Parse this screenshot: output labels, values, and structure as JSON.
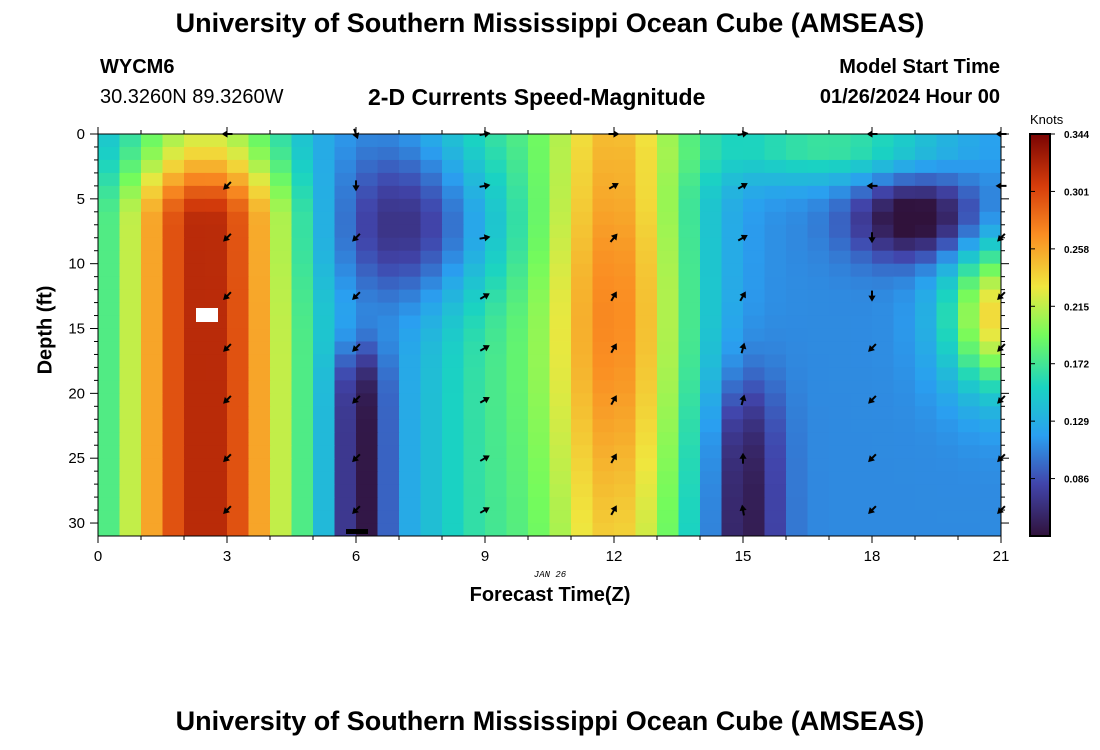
{
  "header": {
    "title": "University of Southern Mississippi Ocean Cube (AMSEAS)",
    "station": "WYCM6",
    "coords": "30.3260N  89.3260W",
    "subtitle": "2-D Currents Speed-Magnitude",
    "model_start_label": "Model Start Time",
    "model_start_value": "01/26/2024 Hour 00"
  },
  "footer": {
    "title": "University of Southern Mississippi Ocean Cube (AMSEAS)"
  },
  "chart_data": {
    "type": "heatmap",
    "xlabel": "Forecast Time(Z)",
    "ylabel": "Depth (ft)",
    "date_label": "JAN 26",
    "xlim": [
      0,
      21
    ],
    "ylim": [
      0,
      31
    ],
    "x_ticks": [
      0,
      3,
      6,
      9,
      12,
      15,
      18,
      21
    ],
    "y_ticks": [
      0,
      5,
      10,
      15,
      20,
      25,
      30
    ],
    "colorbar": {
      "units": "Knots",
      "min": 0.043,
      "max": 0.344,
      "ticks": [
        "0.344",
        "0.301",
        "0.258",
        "0.215",
        "0.172",
        "0.129",
        "0.086"
      ],
      "tick_values": [
        0.344,
        0.301,
        0.258,
        0.215,
        0.172,
        0.129,
        0.086
      ]
    },
    "speed_regions": [
      {
        "x": [
          0,
          5
        ],
        "y": [
          0,
          31
        ],
        "peak": 0.32,
        "note": "strong core near 3Z, 8-30 ft"
      },
      {
        "x": [
          5.5,
          6.5
        ],
        "y": [
          15,
          31
        ],
        "peak": 0.05,
        "note": "weak jet near 6Z"
      },
      {
        "x": [
          10.5,
          13.5
        ],
        "y": [
          0,
          31
        ],
        "peak": 0.29,
        "note": "strong core near 12Z"
      },
      {
        "x": [
          14.5,
          15.5
        ],
        "y": [
          20,
          31
        ],
        "peak": 0.05,
        "note": "weak jet near 15Z"
      },
      {
        "x": [
          18,
          20.5
        ],
        "y": [
          4,
          10
        ],
        "peak": 0.05,
        "note": "weak pocket near 19Z"
      },
      {
        "x": [
          20,
          21
        ],
        "y": [
          10,
          20
        ],
        "peak": 0.25,
        "note": "strong pocket near 21Z"
      }
    ],
    "vectors": {
      "depths": [
        0,
        4,
        8,
        12.5,
        16.5,
        20.5,
        25,
        29
      ],
      "columns": [
        {
          "time": 3,
          "directions_deg": [
            270,
            225,
            225,
            225,
            225,
            225,
            225,
            225
          ]
        },
        {
          "time": 6,
          "directions_deg": [
            160,
            180,
            225,
            225,
            225,
            225,
            225,
            225
          ]
        },
        {
          "time": 9,
          "directions_deg": [
            80,
            80,
            80,
            60,
            60,
            60,
            60,
            60
          ]
        },
        {
          "time": 12,
          "directions_deg": [
            90,
            60,
            40,
            30,
            30,
            30,
            30,
            30
          ]
        },
        {
          "time": 15,
          "directions_deg": [
            80,
            60,
            60,
            30,
            15,
            15,
            0,
            350
          ]
        },
        {
          "time": 18,
          "directions_deg": [
            270,
            270,
            180,
            180,
            225,
            225,
            225,
            225
          ]
        },
        {
          "time": 21,
          "directions_deg": [
            270,
            270,
            225,
            225,
            225,
            225,
            225,
            225
          ]
        }
      ]
    }
  }
}
